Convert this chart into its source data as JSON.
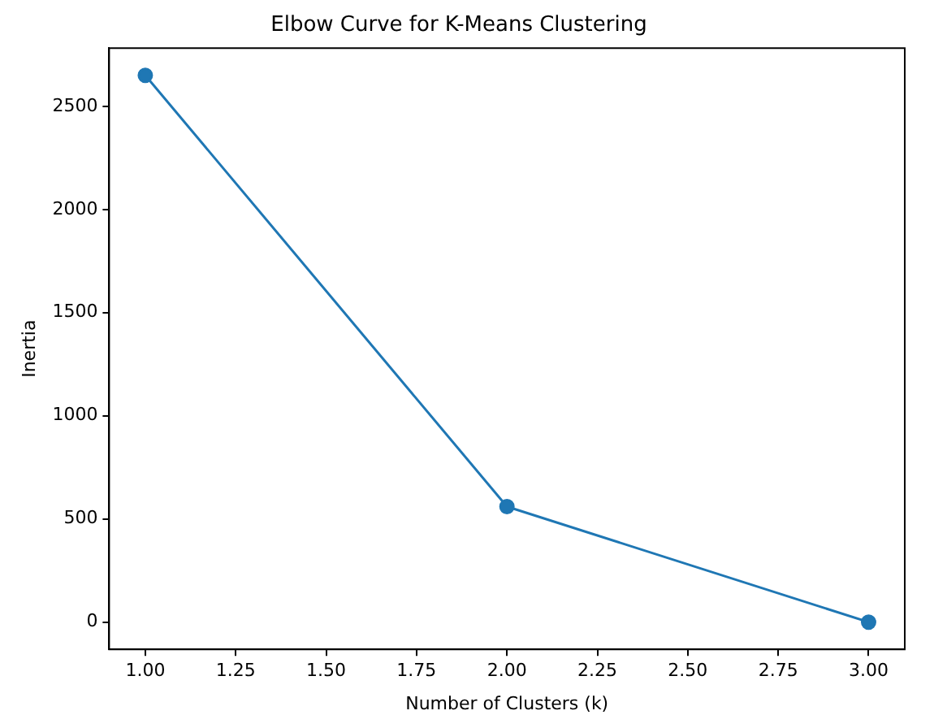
{
  "chart_data": {
    "type": "line",
    "title": "Elbow Curve for K-Means Clustering",
    "xlabel": "Number of Clusters (k)",
    "ylabel": "Inertia",
    "x": [
      1,
      2,
      3
    ],
    "series": [
      {
        "color": "#1f77b4",
        "values": [
          2650,
          560,
          0
        ]
      }
    ],
    "xlim": [
      0.9,
      3.1
    ],
    "xticks": [
      {
        "value": 1,
        "label": "1.00"
      },
      {
        "value": 1.25,
        "label": "1.25"
      },
      {
        "value": 1.5,
        "label": "1.50"
      },
      {
        "value": 1.75,
        "label": "1.75"
      },
      {
        "value": 2,
        "label": "2.00"
      },
      {
        "value": 2.25,
        "label": "2.25"
      },
      {
        "value": 2.5,
        "label": "2.50"
      },
      {
        "value": 2.75,
        "label": "2.75"
      },
      {
        "value": 3,
        "label": "3.00"
      }
    ],
    "ylim": [
      -132,
      2782
    ],
    "yticks": [
      0,
      500,
      1000,
      1500,
      2000,
      2500
    ],
    "grid": false,
    "legend": false,
    "marker": "circle",
    "line_style": "solid"
  }
}
